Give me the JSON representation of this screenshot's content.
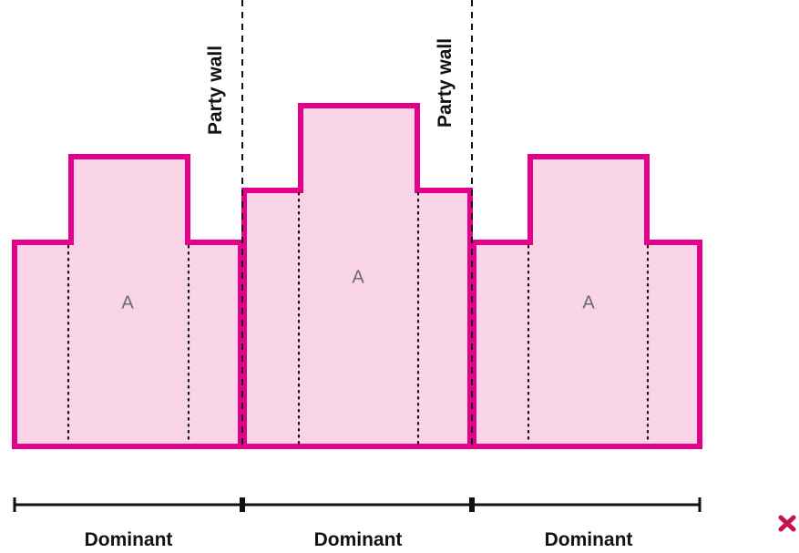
{
  "diagram": {
    "party_walls": [
      "Party wall",
      "Party wall"
    ],
    "buildings": [
      {
        "area_label": "A",
        "bottom_label": "Dominant"
      },
      {
        "area_label": "A",
        "bottom_label": "Dominant"
      },
      {
        "area_label": "A",
        "bottom_label": "Dominant"
      }
    ],
    "colors": {
      "outline": "#e5008c",
      "fill": "#f8d4e6",
      "text": "#111111",
      "area_text": "#6b6b6b",
      "cross_mark": "#c4124e"
    },
    "status_icon": "cross-mark-icon"
  }
}
